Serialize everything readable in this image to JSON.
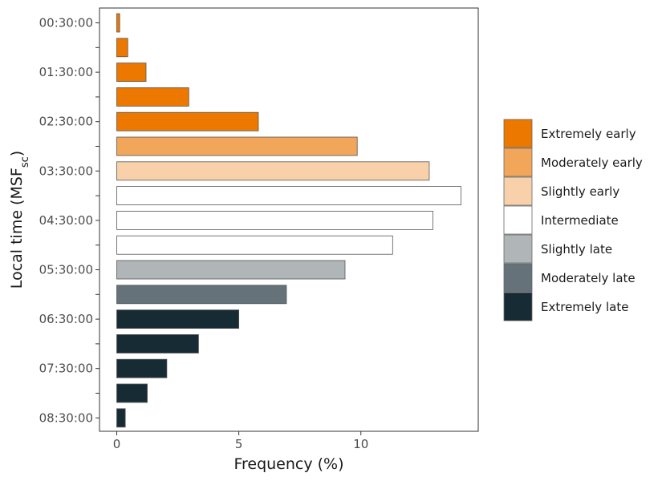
{
  "chart_data": {
    "type": "bar",
    "orientation": "horizontal",
    "title": "",
    "xlabel": "Frequency (%)",
    "ylabel_main": "Local time (MSF",
    "ylabel_sub": "sc",
    "ylabel_close": ")",
    "xlim": [
      0,
      14.8
    ],
    "xticks": [
      0,
      5,
      10
    ],
    "grid": false,
    "legend_position": "right",
    "categories": [
      "00:30:00",
      "01:00:00",
      "01:30:00",
      "02:00:00",
      "02:30:00",
      "03:00:00",
      "03:30:00",
      "04:00:00",
      "04:30:00",
      "05:00:00",
      "05:30:00",
      "06:00:00",
      "06:30:00",
      "07:00:00",
      "07:30:00",
      "08:00:00",
      "08:30:00"
    ],
    "tick_labels": [
      "00:30:00",
      "01:30:00",
      "02:30:00",
      "03:30:00",
      "04:30:00",
      "05:30:00",
      "06:30:00",
      "07:30:00",
      "08:30:00"
    ],
    "values": [
      0.12,
      0.45,
      1.2,
      2.95,
      5.8,
      9.85,
      12.8,
      14.1,
      12.95,
      11.3,
      9.35,
      6.95,
      5.0,
      3.35,
      2.05,
      1.25,
      0.35
    ],
    "bar_classes": [
      0,
      0,
      0,
      0,
      0,
      1,
      2,
      3,
      3,
      3,
      4,
      5,
      6,
      6,
      6,
      6,
      6
    ],
    "series": [
      {
        "name": "Extremely early",
        "color": "#ED7800"
      },
      {
        "name": "Moderately early",
        "color": "#F2A65A"
      },
      {
        "name": "Slightly early",
        "color": "#F8D0A9"
      },
      {
        "name": "Intermediate",
        "color": "#FFFFFF"
      },
      {
        "name": "Slightly late",
        "color": "#B0B6B8"
      },
      {
        "name": "Moderately late",
        "color": "#65727A"
      },
      {
        "name": "Extremely late",
        "color": "#172B35"
      }
    ]
  }
}
